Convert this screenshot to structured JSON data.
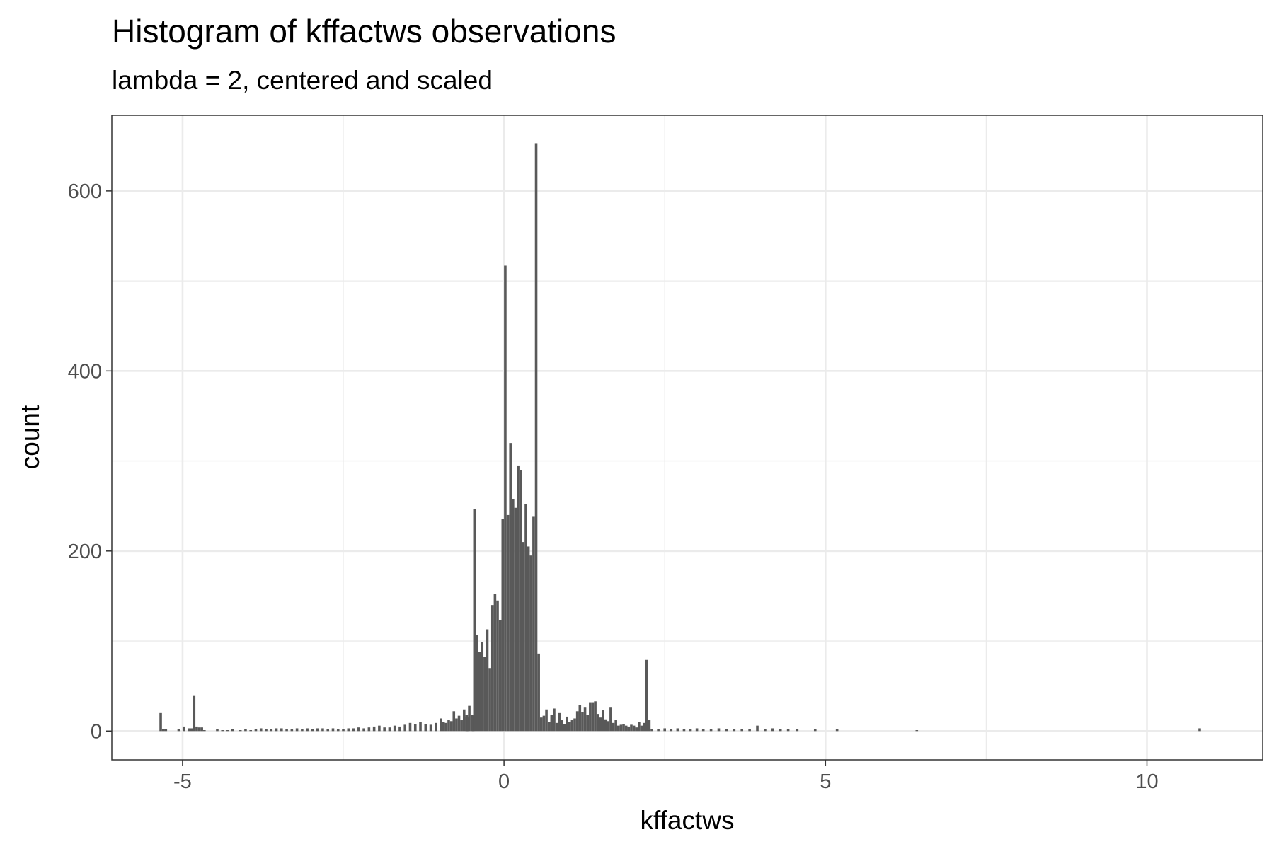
{
  "chart_data": {
    "type": "bar",
    "title": "Histogram of kffactws observations",
    "subtitle": "lambda = 2, centered and scaled",
    "xlabel": "kffactws",
    "ylabel": "count",
    "xlim": [
      -6.1,
      11.8
    ],
    "ylim": [
      -32,
      684
    ],
    "x_ticks": [
      -5,
      0,
      5,
      10
    ],
    "x_tick_labels": [
      "-5",
      "0",
      "5",
      "10"
    ],
    "y_ticks": [
      0,
      200,
      400,
      600
    ],
    "y_tick_labels": [
      "0",
      "200",
      "400",
      "600"
    ],
    "bin_width": 0.0395,
    "bins": [
      {
        "x": -5.34,
        "count": 20
      },
      {
        "x": -5.3,
        "count": 2
      },
      {
        "x": -5.26,
        "count": 2
      },
      {
        "x": -5.06,
        "count": 2
      },
      {
        "x": -4.98,
        "count": 5
      },
      {
        "x": -4.9,
        "count": 3
      },
      {
        "x": -4.86,
        "count": 3
      },
      {
        "x": -4.82,
        "count": 39
      },
      {
        "x": -4.78,
        "count": 5
      },
      {
        "x": -4.74,
        "count": 4
      },
      {
        "x": -4.7,
        "count": 4
      },
      {
        "x": -4.66,
        "count": 1
      },
      {
        "x": -4.46,
        "count": 2
      },
      {
        "x": -4.38,
        "count": 1
      },
      {
        "x": -4.3,
        "count": 1
      },
      {
        "x": -4.22,
        "count": 2
      },
      {
        "x": -4.1,
        "count": 1
      },
      {
        "x": -4.02,
        "count": 2
      },
      {
        "x": -3.94,
        "count": 1
      },
      {
        "x": -3.86,
        "count": 2
      },
      {
        "x": -3.78,
        "count": 3
      },
      {
        "x": -3.7,
        "count": 2
      },
      {
        "x": -3.62,
        "count": 2
      },
      {
        "x": -3.54,
        "count": 3
      },
      {
        "x": -3.46,
        "count": 3
      },
      {
        "x": -3.38,
        "count": 2
      },
      {
        "x": -3.3,
        "count": 2
      },
      {
        "x": -3.22,
        "count": 3
      },
      {
        "x": -3.14,
        "count": 2
      },
      {
        "x": -3.06,
        "count": 3
      },
      {
        "x": -2.98,
        "count": 2
      },
      {
        "x": -2.9,
        "count": 3
      },
      {
        "x": -2.82,
        "count": 3
      },
      {
        "x": -2.74,
        "count": 2
      },
      {
        "x": -2.66,
        "count": 3
      },
      {
        "x": -2.58,
        "count": 2
      },
      {
        "x": -2.5,
        "count": 2
      },
      {
        "x": -2.42,
        "count": 3
      },
      {
        "x": -2.34,
        "count": 3
      },
      {
        "x": -2.26,
        "count": 4
      },
      {
        "x": -2.18,
        "count": 3
      },
      {
        "x": -2.1,
        "count": 4
      },
      {
        "x": -2.02,
        "count": 5
      },
      {
        "x": -1.94,
        "count": 6
      },
      {
        "x": -1.86,
        "count": 4
      },
      {
        "x": -1.78,
        "count": 4
      },
      {
        "x": -1.7,
        "count": 6
      },
      {
        "x": -1.62,
        "count": 5
      },
      {
        "x": -1.54,
        "count": 7
      },
      {
        "x": -1.46,
        "count": 9
      },
      {
        "x": -1.38,
        "count": 8
      },
      {
        "x": -1.3,
        "count": 10
      },
      {
        "x": -1.22,
        "count": 8
      },
      {
        "x": -1.14,
        "count": 7
      },
      {
        "x": -1.06,
        "count": 9
      },
      {
        "x": -0.98,
        "count": 14
      },
      {
        "x": -0.94,
        "count": 10
      },
      {
        "x": -0.9,
        "count": 9
      },
      {
        "x": -0.86,
        "count": 12
      },
      {
        "x": -0.82,
        "count": 11
      },
      {
        "x": -0.78,
        "count": 22
      },
      {
        "x": -0.74,
        "count": 14
      },
      {
        "x": -0.7,
        "count": 17
      },
      {
        "x": -0.66,
        "count": 12
      },
      {
        "x": -0.62,
        "count": 24
      },
      {
        "x": -0.58,
        "count": 16
      },
      {
        "x": -0.58,
        "count": 18
      },
      {
        "x": -0.56,
        "count": 15
      },
      {
        "x": -0.54,
        "count": 28
      },
      {
        "x": -0.5,
        "count": 18
      },
      {
        "x": -0.48,
        "count": 17
      },
      {
        "x": -0.46,
        "count": 247
      },
      {
        "x": -0.42,
        "count": 107
      },
      {
        "x": -0.38,
        "count": 88
      },
      {
        "x": -0.34,
        "count": 99
      },
      {
        "x": -0.3,
        "count": 82
      },
      {
        "x": -0.26,
        "count": 113
      },
      {
        "x": -0.22,
        "count": 70
      },
      {
        "x": -0.18,
        "count": 140
      },
      {
        "x": -0.14,
        "count": 152
      },
      {
        "x": -0.1,
        "count": 145
      },
      {
        "x": -0.06,
        "count": 123
      },
      {
        "x": -0.02,
        "count": 236
      },
      {
        "x": 0.02,
        "count": 517
      },
      {
        "x": 0.06,
        "count": 240
      },
      {
        "x": 0.1,
        "count": 320
      },
      {
        "x": 0.14,
        "count": 258
      },
      {
        "x": 0.18,
        "count": 248
      },
      {
        "x": 0.22,
        "count": 295
      },
      {
        "x": 0.26,
        "count": 290
      },
      {
        "x": 0.3,
        "count": 210
      },
      {
        "x": 0.34,
        "count": 252
      },
      {
        "x": 0.38,
        "count": 205
      },
      {
        "x": 0.42,
        "count": 195
      },
      {
        "x": 0.46,
        "count": 238
      },
      {
        "x": 0.5,
        "count": 653
      },
      {
        "x": 0.54,
        "count": 86
      },
      {
        "x": 0.58,
        "count": 15
      },
      {
        "x": 0.62,
        "count": 17
      },
      {
        "x": 0.66,
        "count": 24
      },
      {
        "x": 0.7,
        "count": 10
      },
      {
        "x": 0.74,
        "count": 18
      },
      {
        "x": 0.78,
        "count": 25
      },
      {
        "x": 0.82,
        "count": 9
      },
      {
        "x": 0.86,
        "count": 20
      },
      {
        "x": 0.9,
        "count": 12
      },
      {
        "x": 0.94,
        "count": 8
      },
      {
        "x": 0.98,
        "count": 16
      },
      {
        "x": 1.02,
        "count": 10
      },
      {
        "x": 1.06,
        "count": 12
      },
      {
        "x": 1.1,
        "count": 14
      },
      {
        "x": 1.14,
        "count": 22
      },
      {
        "x": 1.18,
        "count": 29
      },
      {
        "x": 1.22,
        "count": 21
      },
      {
        "x": 1.26,
        "count": 26
      },
      {
        "x": 1.3,
        "count": 18
      },
      {
        "x": 1.34,
        "count": 32
      },
      {
        "x": 1.38,
        "count": 32
      },
      {
        "x": 1.42,
        "count": 33
      },
      {
        "x": 1.46,
        "count": 19
      },
      {
        "x": 1.5,
        "count": 15
      },
      {
        "x": 1.54,
        "count": 23
      },
      {
        "x": 1.58,
        "count": 13
      },
      {
        "x": 1.62,
        "count": 11
      },
      {
        "x": 1.66,
        "count": 26
      },
      {
        "x": 1.7,
        "count": 9
      },
      {
        "x": 1.74,
        "count": 12
      },
      {
        "x": 1.78,
        "count": 6
      },
      {
        "x": 1.82,
        "count": 7
      },
      {
        "x": 1.86,
        "count": 8
      },
      {
        "x": 1.9,
        "count": 6
      },
      {
        "x": 1.94,
        "count": 5
      },
      {
        "x": 1.98,
        "count": 7
      },
      {
        "x": 2.02,
        "count": 6
      },
      {
        "x": 2.06,
        "count": 4
      },
      {
        "x": 2.1,
        "count": 10
      },
      {
        "x": 2.14,
        "count": 6
      },
      {
        "x": 2.18,
        "count": 9
      },
      {
        "x": 2.22,
        "count": 79
      },
      {
        "x": 2.26,
        "count": 12
      },
      {
        "x": 2.3,
        "count": 2
      },
      {
        "x": 2.4,
        "count": 2
      },
      {
        "x": 2.5,
        "count": 3
      },
      {
        "x": 2.6,
        "count": 2
      },
      {
        "x": 2.7,
        "count": 3
      },
      {
        "x": 2.8,
        "count": 2
      },
      {
        "x": 2.9,
        "count": 2
      },
      {
        "x": 3.0,
        "count": 3
      },
      {
        "x": 3.1,
        "count": 2
      },
      {
        "x": 3.22,
        "count": 2
      },
      {
        "x": 3.34,
        "count": 3
      },
      {
        "x": 3.46,
        "count": 2
      },
      {
        "x": 3.58,
        "count": 2
      },
      {
        "x": 3.7,
        "count": 2
      },
      {
        "x": 3.82,
        "count": 2
      },
      {
        "x": 3.94,
        "count": 6
      },
      {
        "x": 4.06,
        "count": 2
      },
      {
        "x": 4.18,
        "count": 3
      },
      {
        "x": 4.3,
        "count": 2
      },
      {
        "x": 4.42,
        "count": 2
      },
      {
        "x": 4.56,
        "count": 2
      },
      {
        "x": 4.84,
        "count": 2
      },
      {
        "x": 5.18,
        "count": 2
      },
      {
        "x": 6.42,
        "count": 1
      },
      {
        "x": 10.82,
        "count": 3
      }
    ]
  }
}
